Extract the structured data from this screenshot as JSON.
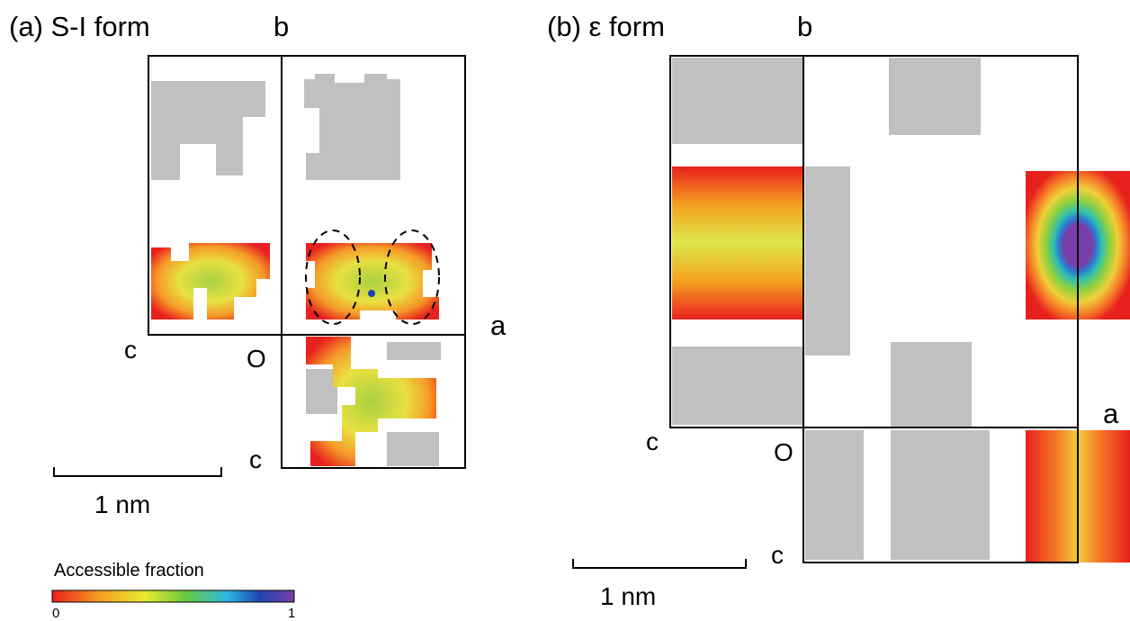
{
  "panels": [
    {
      "label": "(a) S-I form",
      "axis_b": "b",
      "axis_a": "a",
      "axis_c_left": "c",
      "axis_c_bottom": "c",
      "origin": "O",
      "scale_bar": "1 nm"
    },
    {
      "label": "(b) ε form",
      "axis_b": "b",
      "axis_a": "a",
      "axis_c_left": "c",
      "axis_c_bottom": "c",
      "origin": "O",
      "scale_bar": "1 nm"
    }
  ],
  "colorbar": {
    "title": "Accessible fraction",
    "min": 0,
    "max": 1
  }
}
